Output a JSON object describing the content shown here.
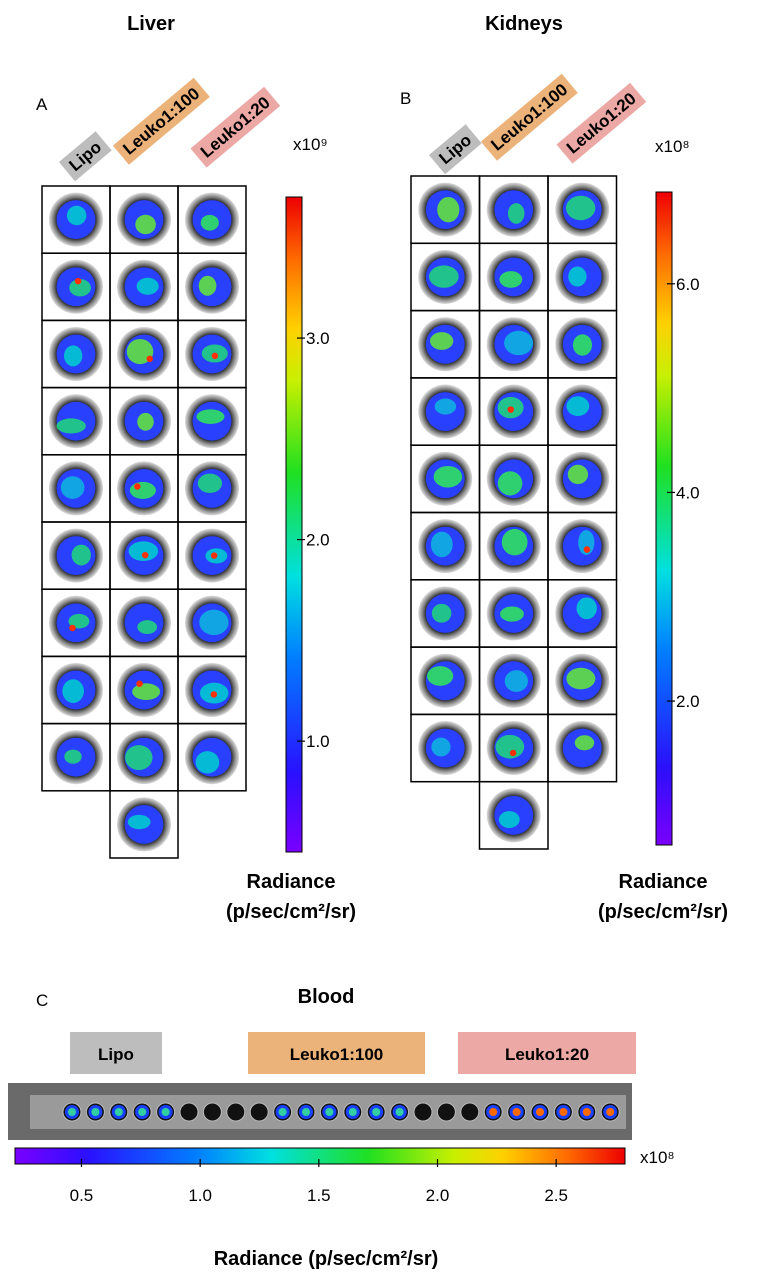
{
  "panels": [
    {
      "letter": "A",
      "title": "Liver",
      "groups": [
        "Lipo",
        "Leuko1:100",
        "Leuko1:20"
      ],
      "scale_multiplier": "x10⁹",
      "colorbar": {
        "lim": [
          0.45,
          3.7
        ],
        "ticks": [
          {
            "value": 1,
            "label": "1.0"
          },
          {
            "value": 2,
            "label": "2.0"
          },
          {
            "value": 3,
            "label": "3.0"
          }
        ]
      },
      "radiance_label": [
        "Radiance",
        "(p/sec/cm²/sr)"
      ]
    },
    {
      "letter": "B",
      "title": "Kidneys",
      "groups": [
        "Lipo",
        "Leuko1:100",
        "Leuko1:20"
      ],
      "scale_multiplier": "x10⁸",
      "colorbar": {
        "lim": [
          0.62,
          6.88
        ],
        "ticks": [
          {
            "value": 2,
            "label": "2.0"
          },
          {
            "value": 4,
            "label": "4.0"
          },
          {
            "value": 6,
            "label": "6.0"
          }
        ]
      },
      "radiance_label": [
        "Radiance",
        "(p/sec/cm²/sr)"
      ]
    },
    {
      "letter": "C",
      "title": "Blood",
      "groups": [
        "Lipo",
        "Leuko1:100",
        "Leuko1:20"
      ],
      "scale_multiplier": "x10⁸",
      "colorbar": {
        "lim": [
          0.22,
          2.79
        ],
        "ticks": [
          0.5,
          {
            "value": 1,
            "label": "1.0"
          },
          1.5,
          {
            "value": 2,
            "label": "2.0"
          },
          2.5
        ]
      },
      "radiance_label": [
        "Radiance (p/sec/cm²/sr)"
      ]
    }
  ]
}
